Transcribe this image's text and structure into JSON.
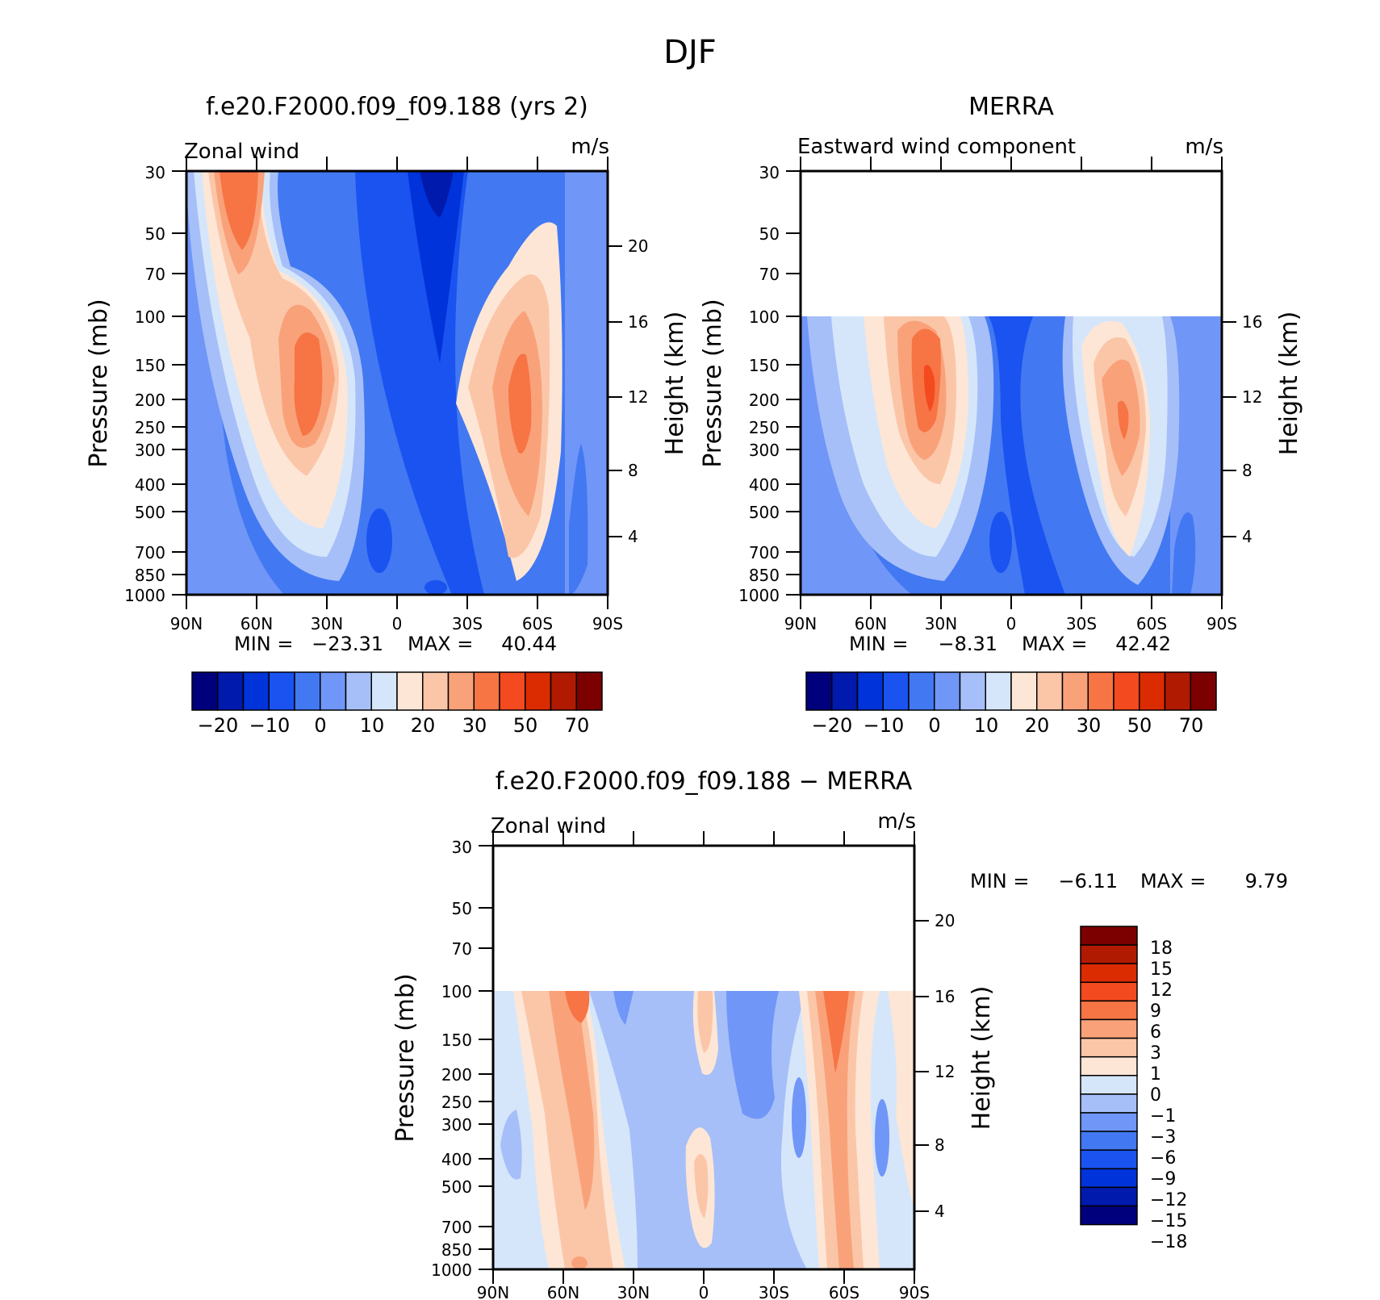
{
  "figure": {
    "season_title": "DJF"
  },
  "colors": {
    "main_scale": [
      "#00007d",
      "#001aae",
      "#0033d9",
      "#1a53f0",
      "#4278f2",
      "#7096f7",
      "#a6bff8",
      "#d5e6fb",
      "#fde6d6",
      "#fbc6a8",
      "#f9a27a",
      "#f77445",
      "#f44a1f",
      "#db2b00",
      "#b01a00",
      "#7c0000"
    ],
    "diff_scale": [
      "#00007d",
      "#001aae",
      "#0033d9",
      "#1a53f0",
      "#4278f2",
      "#7096f7",
      "#a6bff8",
      "#d5e6fb",
      "#fde6d6",
      "#fbc6a8",
      "#f9a27a",
      "#f77445",
      "#f44a1f",
      "#db2b00",
      "#b01a00",
      "#7c0000"
    ]
  },
  "panels": {
    "model": {
      "title": "f.e20.F2000.f09_f09.188 (yrs 2)",
      "left_label": "Zonal wind",
      "units": "m/s",
      "stats": {
        "min_label": "MIN =",
        "min_value": "−23.31",
        "max_label": "MAX =",
        "max_value": "40.44"
      },
      "colorbar_labels": [
        "−20",
        "−10",
        "0",
        "10",
        "20",
        "30",
        "50",
        "70"
      ]
    },
    "obs": {
      "title": "MERRA",
      "left_label": "Eastward wind component",
      "units": "m/s",
      "stats": {
        "min_label": "MIN =",
        "min_value": "−8.31",
        "max_label": "MAX =",
        "max_value": "42.42"
      },
      "colorbar_labels": [
        "−20",
        "−10",
        "0",
        "10",
        "20",
        "30",
        "50",
        "70"
      ]
    },
    "diff": {
      "title": "f.e20.F2000.f09_f09.188 − MERRA",
      "left_label": "Zonal wind",
      "units": "m/s",
      "stats": {
        "min_label": "MIN =",
        "min_value": "−6.11",
        "max_label": "MAX =",
        "max_value": "9.79"
      },
      "colorbar_labels": [
        "18",
        "15",
        "12",
        "9",
        "6",
        "3",
        "1",
        "0",
        "−1",
        "−3",
        "−6",
        "−9",
        "−12",
        "−15",
        "−18"
      ]
    }
  },
  "axes": {
    "y_label": "Pressure (mb)",
    "y2_label": "Height (km)",
    "pressure_ticks": [
      "30",
      "50",
      "70",
      "100",
      "150",
      "200",
      "250",
      "300",
      "400",
      "500",
      "700",
      "850",
      "1000"
    ],
    "lat_ticks": [
      "90N",
      "60N",
      "30N",
      "0",
      "30S",
      "60S",
      "90S"
    ],
    "height_ticks_full": [
      "20",
      "16",
      "12",
      "8",
      "4"
    ],
    "height_ticks_merra": [
      "16",
      "12",
      "8",
      "4"
    ]
  },
  "chart_data": [
    {
      "type": "heatmap",
      "title": "f.e20.F2000.f09_f09.188 (yrs 2)",
      "subtitle": "Zonal wind",
      "units": "m/s",
      "x": [
        "90N",
        "60N",
        "30N",
        "0",
        "30S",
        "60S",
        "90S"
      ],
      "y": [
        30,
        50,
        70,
        100,
        150,
        200,
        250,
        300,
        400,
        500,
        700,
        850,
        1000
      ],
      "xlabel": "",
      "ylabel": "Pressure (mb)",
      "y2label": "Height (km)",
      "min": -23.31,
      "max": 40.44,
      "levels": [
        -20,
        -10,
        0,
        10,
        20,
        30,
        50,
        70
      ],
      "features": [
        {
          "lat": 66,
          "p": 40,
          "value": 25
        },
        {
          "lat": 30,
          "p": 200,
          "value": 40
        },
        {
          "lat": -50,
          "p": 200,
          "value": 35
        },
        {
          "lat": -15,
          "p": 30,
          "value": -23
        }
      ]
    },
    {
      "type": "heatmap",
      "title": "MERRA",
      "subtitle": "Eastward wind component",
      "units": "m/s",
      "x": [
        "90N",
        "60N",
        "30N",
        "0",
        "30S",
        "60S",
        "90S"
      ],
      "y": [
        30,
        50,
        70,
        100,
        150,
        200,
        250,
        300,
        400,
        500,
        700,
        850,
        1000
      ],
      "xlabel": "",
      "ylabel": "Pressure (mb)",
      "y2label": "Height (km)",
      "min": -8.31,
      "max": 42.42,
      "levels": [
        -20,
        -10,
        0,
        10,
        20,
        30,
        50,
        70
      ],
      "features": [
        {
          "lat": 30,
          "p": 200,
          "value": 42
        },
        {
          "lat": -48,
          "p": 230,
          "value": 34
        },
        {
          "lat": 0,
          "p": 400,
          "value": -8
        }
      ]
    },
    {
      "type": "heatmap",
      "title": "f.e20.F2000.f09_f09.188 − MERRA",
      "subtitle": "Zonal wind",
      "units": "m/s",
      "x": [
        "90N",
        "60N",
        "30N",
        "0",
        "30S",
        "60S",
        "90S"
      ],
      "y": [
        30,
        50,
        70,
        100,
        150,
        200,
        250,
        300,
        400,
        500,
        700,
        850,
        1000
      ],
      "xlabel": "",
      "ylabel": "Pressure (mb)",
      "y2label": "Height (km)",
      "min": -6.11,
      "max": 9.79,
      "levels": [
        18,
        15,
        12,
        9,
        6,
        3,
        1,
        0,
        -1,
        -3,
        -6,
        -9,
        -12,
        -15,
        -18
      ],
      "features": [
        {
          "lat": 60,
          "p": 120,
          "value": 7
        },
        {
          "lat": -60,
          "p": 150,
          "value": 9
        },
        {
          "lat": 0,
          "p": 150,
          "value": 3
        },
        {
          "lat": -30,
          "p": 200,
          "value": -5
        }
      ]
    }
  ]
}
